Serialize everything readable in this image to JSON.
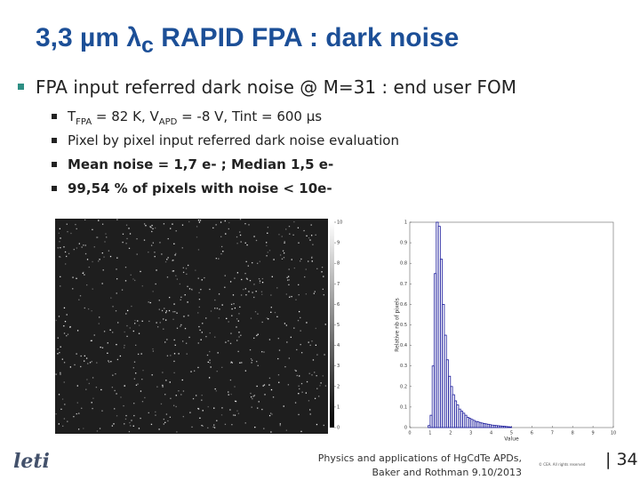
{
  "title": {
    "prefix": "3,3 µm λ",
    "subscript": "c",
    "suffix": " RAPID FPA : dark noise"
  },
  "bullet": "FPA input referred dark noise @ M=31 : end user FOM",
  "sub_bullets": [
    [
      {
        "text": "T"
      },
      {
        "text": "FPA",
        "sub": true
      },
      {
        "text": " = 82 K, V"
      },
      {
        "text": "APD",
        "sub": true
      },
      {
        "text": " = -8 V, Tint =  600 µs"
      }
    ],
    [
      {
        "text": "Pixel by pixel input referred dark noise evaluation"
      }
    ],
    [
      {
        "text": "Mean noise = 1,7 e- ; Median 1,5 e-",
        "bold": true
      }
    ],
    [
      {
        "text": "99,54 % of pixels with noise < 10e-",
        "bold": true
      }
    ]
  ],
  "colorbar": {
    "lim": [
      0,
      10
    ],
    "ticks": [
      0,
      1,
      2,
      3,
      4,
      5,
      6,
      7,
      8,
      9,
      10
    ]
  },
  "chart_data": {
    "type": "histogram",
    "xlabel": "Value",
    "ylabel": "Relative nb of pixels",
    "color": "#1a1a9c",
    "bins": [
      0.8,
      0.9,
      1.0,
      1.1,
      1.2,
      1.3,
      1.4,
      1.5,
      1.6,
      1.7,
      1.8,
      1.9,
      2.0,
      2.1,
      2.2,
      2.3,
      2.4,
      2.5,
      2.6,
      2.7,
      2.8,
      2.9,
      3.0,
      3.1,
      3.2,
      3.3,
      3.4,
      3.5,
      3.6,
      3.7,
      3.8,
      3.9,
      4.0,
      4.1,
      4.2,
      4.3,
      4.4,
      4.5,
      4.6,
      4.7,
      4.8,
      4.9,
      5.0
    ],
    "values": [
      0,
      0.01,
      0.06,
      0.3,
      0.75,
      1.0,
      0.98,
      0.82,
      0.6,
      0.45,
      0.33,
      0.25,
      0.2,
      0.16,
      0.13,
      0.11,
      0.09,
      0.08,
      0.07,
      0.06,
      0.05,
      0.045,
      0.04,
      0.035,
      0.03,
      0.028,
      0.025,
      0.022,
      0.02,
      0.018,
      0.016,
      0.014,
      0.012,
      0.011,
      0.01,
      0.009,
      0.008,
      0.007,
      0.006,
      0.005,
      0.004,
      0.003
    ],
    "xlim": [
      0,
      10
    ],
    "ylim": [
      0,
      1
    ],
    "xticks": [
      0,
      1,
      2,
      3,
      4,
      5,
      6,
      7,
      8,
      9,
      10
    ],
    "yticks": [
      0,
      0.1,
      0.2,
      0.3,
      0.4,
      0.5,
      0.6,
      0.7,
      0.8,
      0.9,
      1
    ]
  },
  "footer": {
    "line1": "Physics and applications of HgCdTe APDs,",
    "line2": "Baker and Rothman 9.10/2013",
    "copyright": "© CEA. All rights reserved",
    "page": "| 34",
    "logo": "leti"
  }
}
